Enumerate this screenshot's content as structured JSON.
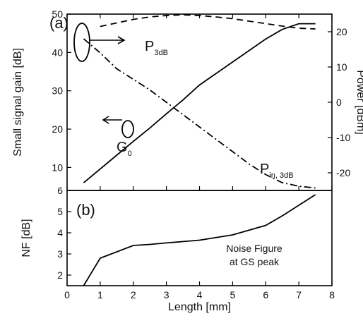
{
  "chart_data": [
    {
      "type": "line",
      "panel_label": "(a)",
      "x_range": [
        0,
        8
      ],
      "xticks": [
        0,
        1,
        2,
        3,
        4,
        5,
        6,
        7,
        8
      ],
      "left_axis": {
        "label": "Small signal gain [dB]",
        "range": [
          4,
          50
        ],
        "ticks": [
          10,
          20,
          30,
          40,
          50
        ]
      },
      "right_axis": {
        "label": "Power [dBm]",
        "range": [
          -25,
          25
        ],
        "ticks": [
          -20,
          -10,
          0,
          10,
          20
        ]
      },
      "series": [
        {
          "name": "G",
          "subscript": "0",
          "axis": "left",
          "style": "solid",
          "x": [
            0.5,
            1,
            1.5,
            2,
            2.5,
            3,
            3.5,
            4,
            4.5,
            5,
            5.5,
            6,
            6.5,
            7,
            7.5
          ],
          "y": [
            6,
            9.6,
            13.2,
            16.8,
            20.3,
            24,
            27.6,
            31.5,
            34.5,
            37.5,
            40.5,
            43.5,
            46,
            47.5,
            47.5
          ]
        },
        {
          "name": "P",
          "subscript": "3dB",
          "axis": "right",
          "style": "dashed",
          "x": [
            1,
            1.5,
            2,
            2.5,
            3,
            3.5,
            4,
            4.5,
            5,
            5.5,
            6,
            6.5,
            7,
            7.5
          ],
          "y": [
            21.5,
            22.5,
            23.5,
            24.2,
            24.6,
            24.8,
            24.6,
            24.2,
            23.7,
            23,
            22.3,
            21.6,
            21,
            20.8
          ]
        },
        {
          "name": "P",
          "subscript": "in, 3dB",
          "axis": "right",
          "style": "dash-dot",
          "x": [
            0.5,
            1,
            1.5,
            2,
            2.5,
            3,
            3.5,
            4,
            4.5,
            5,
            5.5,
            6,
            6.5,
            7,
            7.5
          ],
          "y": [
            18,
            14,
            9.5,
            6.5,
            3.5,
            0,
            -3.5,
            -7,
            -10.5,
            -14,
            -17.5,
            -20.5,
            -22.8,
            -23.8,
            -24.3
          ]
        }
      ]
    },
    {
      "type": "line",
      "panel_label": "(b)",
      "x_range": [
        0,
        8
      ],
      "xticks": [
        0,
        1,
        2,
        3,
        4,
        5,
        6,
        7,
        8
      ],
      "xlabel": "Length [mm]",
      "ylabel": "NF [dB]",
      "y_range": [
        1.5,
        6
      ],
      "yticks": [
        2,
        3,
        4,
        5,
        6
      ],
      "annotation": [
        "Noise Figure",
        "at GS peak"
      ],
      "series": [
        {
          "style": "solid",
          "x": [
            0.5,
            1,
            2,
            2.5,
            3,
            4,
            5,
            6,
            6.5,
            7,
            7.5
          ],
          "y": [
            1.5,
            2.8,
            3.4,
            3.45,
            3.52,
            3.65,
            3.9,
            4.35,
            4.8,
            5.3,
            5.8
          ]
        }
      ]
    }
  ]
}
